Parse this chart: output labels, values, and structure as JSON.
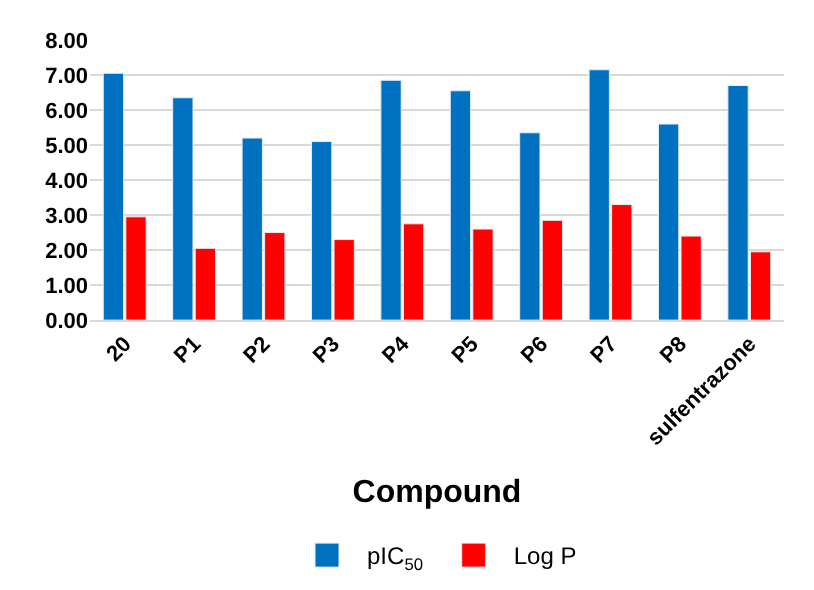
{
  "chart_data": {
    "type": "bar",
    "xlabel": "Compound",
    "categories": [
      "20",
      "P1",
      "P2",
      "P3",
      "P4",
      "P5",
      "P6",
      "P7",
      "P8",
      "sulfentrazone"
    ],
    "series": [
      {
        "name": "pIC$_{50}$",
        "color": "#0070c0",
        "values": [
          7.05,
          6.35,
          5.2,
          5.1,
          6.85,
          6.55,
          5.35,
          7.15,
          5.6,
          6.7
        ]
      },
      {
        "name": "Log P",
        "color": "#ff0000",
        "values": [
          2.95,
          2.05,
          2.5,
          2.3,
          2.75,
          2.6,
          2.85,
          3.3,
          2.4,
          1.95
        ]
      }
    ],
    "ylim": [
      0,
      8
    ],
    "yticks": [
      {
        "value": 0,
        "label": "0.00"
      },
      {
        "value": 1,
        "label": "1.00"
      },
      {
        "value": 2,
        "label": "2.00"
      },
      {
        "value": 3,
        "label": "3.00"
      },
      {
        "value": 4,
        "label": "4.00"
      },
      {
        "value": 5,
        "label": "5.00"
      },
      {
        "value": 6,
        "label": "6.00"
      },
      {
        "value": 7,
        "label": "7.00"
      },
      {
        "value": 8,
        "label": "8.00"
      }
    ],
    "grid": "y",
    "legend": "bottom"
  }
}
